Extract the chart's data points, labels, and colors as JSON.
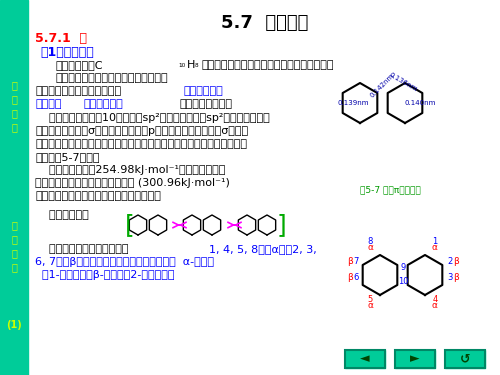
{
  "title": "5.7  稠环芳烃",
  "bg_color": "#ffffff",
  "sidebar_color": "#00CC99",
  "sidebar_text1": "有\n机\n化\n学",
  "sidebar_text2": "第\n十\n二\n讲",
  "sidebar_text3": "(1)",
  "sidebar_text_color": "#CCFF00",
  "heading1": "5.7.1  萘",
  "heading1_color": "#FF0000",
  "heading2": "（1）萘的结构",
  "heading2_color": "#0000FF",
  "line1": "萘的分子式：C₁₀H₈，萘是由两个苯环共用两个碳原子并联而成。",
  "line2a": "萘与苯相似，也具有平面结构，即两个",
  "line3a": "苯环在同一平面上。碳碳键长",
  "line3b": "与普通的单双",
  "line4a": "键不同，",
  "line4b": "与苯也不相同",
  "line4c": "，并不完全相等。",
  "line5": "    与苯相似，分子中10个碳均为sp²杂化，各以三个sp²杂化轨道分别与",
  "line6": "其它三个原子形成σ键，每个碳原子的p轨道的对称轴都垂直于σ键所在",
  "line7": "的平面，且对称轴相互平行并在侧面相互交盖，形成了一个闭合的共轭体",
  "line8": "系，如图5-7所示。",
  "line9a": "    萘的离域能约为254.98kJ·mol⁻¹，比较稳定。但",
  "line9b": "此值比两个单独苯的离域能的总和 (300.96kJ·mol⁻¹)",
  "line9c": "为低，因此萘的芳香性比苯差，比苯活泼。",
  "line10": "    萘的共振式：",
  "line11a": "    萘环中有两种不同的位置：",
  "line11b": "1, 4, 5, 8称为α位，2, 3,",
  "line12": "6, 7称为β位。因此萘的一元取代物有两种：  α-取代物",
  "line13": "  （1-取代物）和β-取代物（2-取代物）。",
  "nav_color": "#00CC99",
  "nav_border_color": "#008866",
  "main_text_color": "#000000",
  "blue_text_color": "#0000FF",
  "red_text_color": "#FF0000"
}
